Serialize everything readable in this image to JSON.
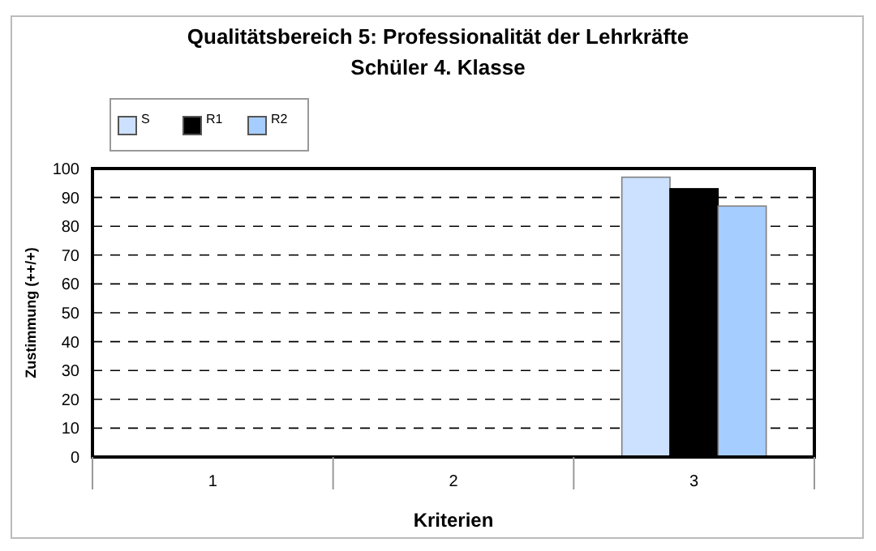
{
  "chart_data": {
    "type": "bar",
    "title": "Qualitätsbereich 5: Professionalität der Lehrkräfte",
    "subtitle": "Schüler 4. Klasse",
    "xlabel": "Kriterien",
    "ylabel": "Zustimmung (++/+)",
    "categories": [
      "1",
      "2",
      "3"
    ],
    "series": [
      {
        "name": "S",
        "color": "#cce0ff",
        "values": [
          null,
          null,
          97
        ]
      },
      {
        "name": "R1",
        "color": "#000000",
        "values": [
          null,
          null,
          93
        ]
      },
      {
        "name": "R2",
        "color": "#a6cdff",
        "values": [
          null,
          null,
          87
        ]
      }
    ],
    "ylim": [
      0,
      100
    ],
    "yticks": [
      0,
      10,
      20,
      30,
      40,
      50,
      60,
      70,
      80,
      90,
      100
    ],
    "grid": "y",
    "legend": "top left"
  }
}
